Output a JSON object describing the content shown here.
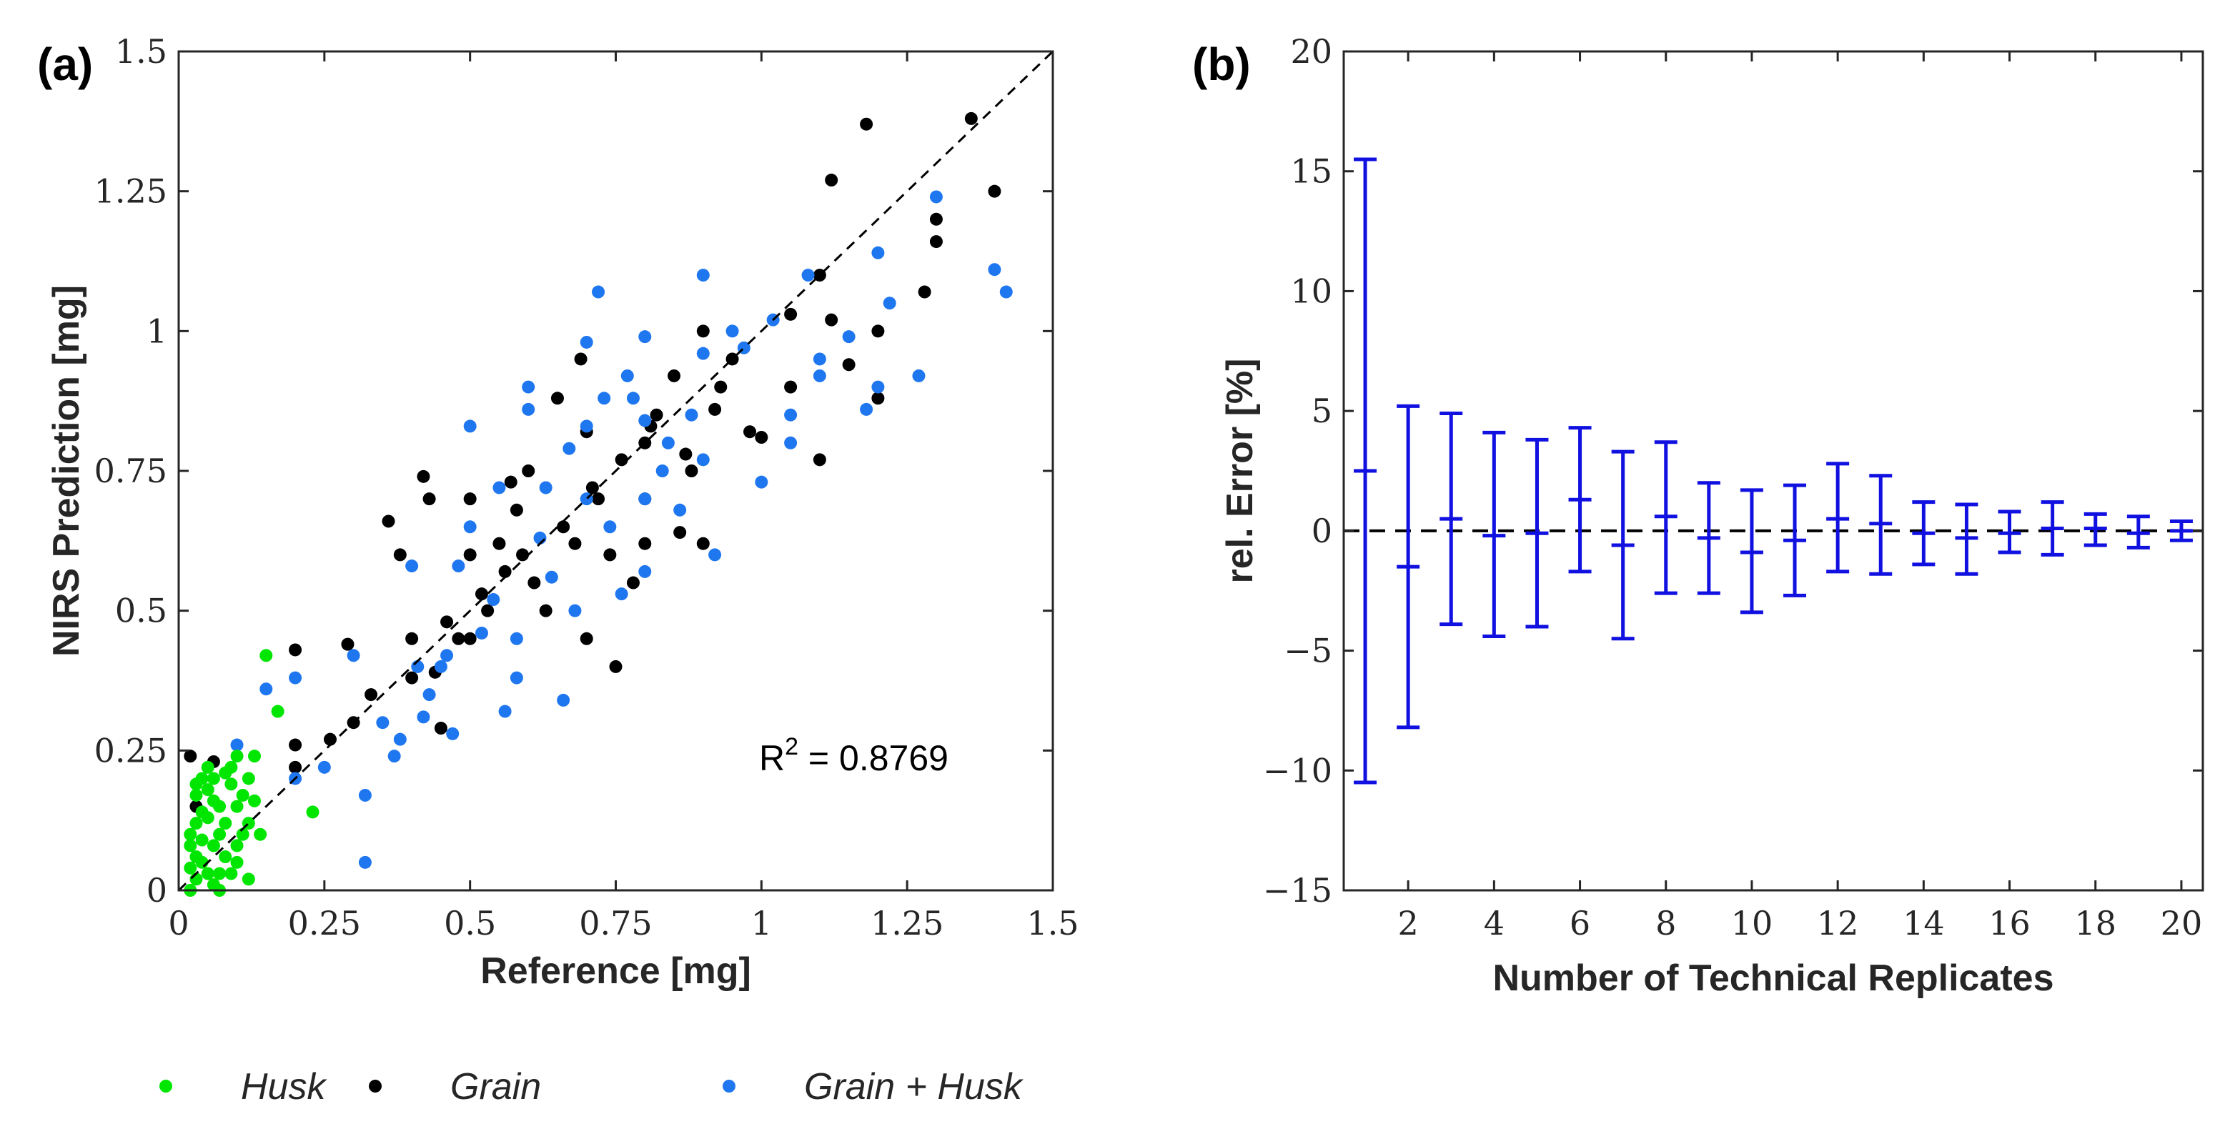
{
  "chart_data": [
    {
      "type": "scatter",
      "panel_label": "(a)",
      "xlabel": "Reference [mg]",
      "ylabel": "NIRS Prediction [mg]",
      "xlim": [
        0,
        1.5
      ],
      "ylim": [
        0,
        1.5
      ],
      "x_ticks": [
        "0",
        "0.25",
        "0.5",
        "0.75",
        "1",
        "1.25",
        "1.5"
      ],
      "y_ticks": [
        "0",
        "0.25",
        "0.5",
        "0.75",
        "1",
        "1.25",
        "1.5"
      ],
      "annotation": {
        "base": "R",
        "sup": "2",
        "rest": " = 0.8769"
      },
      "reference_line": "y = x (dashed)",
      "legend_position": "bottom",
      "series": [
        {
          "name": "Husk",
          "color": "#00e600",
          "points": [
            [
              0.02,
              0.0
            ],
            [
              0.03,
              0.02
            ],
            [
              0.04,
              0.05
            ],
            [
              0.05,
              0.03
            ],
            [
              0.06,
              0.08
            ],
            [
              0.07,
              0.1
            ],
            [
              0.03,
              0.12
            ],
            [
              0.08,
              0.06
            ],
            [
              0.1,
              0.15
            ],
            [
              0.12,
              0.2
            ],
            [
              0.05,
              0.18
            ],
            [
              0.02,
              0.08
            ],
            [
              0.04,
              0.14
            ],
            [
              0.06,
              0.2
            ],
            [
              0.09,
              0.22
            ],
            [
              0.11,
              0.1
            ],
            [
              0.13,
              0.16
            ],
            [
              0.03,
              0.06
            ],
            [
              0.07,
              0.0
            ],
            [
              0.08,
              0.12
            ],
            [
              0.1,
              0.05
            ],
            [
              0.02,
              0.1
            ],
            [
              0.05,
              0.22
            ],
            [
              0.06,
              0.16
            ],
            [
              0.04,
              0.09
            ],
            [
              0.03,
              0.17
            ],
            [
              0.12,
              0.02
            ],
            [
              0.09,
              0.19
            ],
            [
              0.15,
              0.42
            ],
            [
              0.17,
              0.32
            ],
            [
              0.14,
              0.1
            ],
            [
              0.23,
              0.14
            ],
            [
              0.07,
              0.03
            ],
            [
              0.1,
              0.08
            ],
            [
              0.11,
              0.17
            ],
            [
              0.05,
              0.13
            ],
            [
              0.08,
              0.21
            ],
            [
              0.06,
              0.01
            ],
            [
              0.02,
              0.04
            ],
            [
              0.04,
              0.2
            ],
            [
              0.09,
              0.03
            ],
            [
              0.12,
              0.12
            ],
            [
              0.13,
              0.24
            ],
            [
              0.03,
              0.19
            ],
            [
              0.07,
              0.15
            ],
            [
              0.1,
              0.24
            ]
          ]
        },
        {
          "name": "Grain",
          "color": "#000000",
          "points": [
            [
              0.02,
              0.24
            ],
            [
              0.03,
              0.15
            ],
            [
              0.06,
              0.23
            ],
            [
              0.2,
              0.26
            ],
            [
              0.2,
              0.22
            ],
            [
              0.2,
              0.43
            ],
            [
              0.26,
              0.27
            ],
            [
              0.29,
              0.44
            ],
            [
              0.3,
              0.3
            ],
            [
              0.33,
              0.35
            ],
            [
              0.36,
              0.66
            ],
            [
              0.38,
              0.6
            ],
            [
              0.4,
              0.45
            ],
            [
              0.4,
              0.38
            ],
            [
              0.42,
              0.74
            ],
            [
              0.43,
              0.7
            ],
            [
              0.45,
              0.29
            ],
            [
              0.46,
              0.48
            ],
            [
              0.5,
              0.7
            ],
            [
              0.5,
              0.6
            ],
            [
              0.5,
              0.45
            ],
            [
              0.52,
              0.53
            ],
            [
              0.55,
              0.62
            ],
            [
              0.57,
              0.73
            ],
            [
              0.58,
              0.68
            ],
            [
              0.6,
              0.75
            ],
            [
              0.61,
              0.55
            ],
            [
              0.63,
              0.5
            ],
            [
              0.65,
              0.88
            ],
            [
              0.68,
              0.62
            ],
            [
              0.69,
              0.95
            ],
            [
              0.7,
              0.45
            ],
            [
              0.7,
              0.82
            ],
            [
              0.72,
              0.7
            ],
            [
              0.74,
              0.6
            ],
            [
              0.75,
              0.4
            ],
            [
              0.78,
              0.55
            ],
            [
              0.8,
              0.8
            ],
            [
              0.8,
              0.7
            ],
            [
              0.8,
              0.62
            ],
            [
              0.82,
              0.85
            ],
            [
              0.85,
              0.92
            ],
            [
              0.86,
              0.64
            ],
            [
              0.88,
              0.75
            ],
            [
              0.9,
              1.0
            ],
            [
              0.9,
              0.62
            ],
            [
              0.92,
              0.86
            ],
            [
              0.95,
              0.95
            ],
            [
              0.98,
              0.82
            ],
            [
              1.0,
              0.81
            ],
            [
              1.05,
              0.9
            ],
            [
              1.05,
              1.03
            ],
            [
              1.1,
              1.1
            ],
            [
              1.1,
              0.77
            ],
            [
              1.12,
              1.27
            ],
            [
              1.12,
              1.02
            ],
            [
              1.15,
              0.94
            ],
            [
              1.18,
              1.37
            ],
            [
              1.2,
              0.88
            ],
            [
              1.2,
              1.0
            ],
            [
              1.28,
              1.07
            ],
            [
              1.3,
              1.2
            ],
            [
              1.3,
              1.16
            ],
            [
              1.36,
              1.38
            ],
            [
              1.4,
              1.25
            ],
            [
              0.44,
              0.39
            ],
            [
              0.48,
              0.45
            ],
            [
              0.53,
              0.5
            ],
            [
              0.56,
              0.57
            ],
            [
              0.59,
              0.6
            ],
            [
              0.66,
              0.65
            ],
            [
              0.71,
              0.72
            ],
            [
              0.76,
              0.77
            ],
            [
              0.81,
              0.83
            ],
            [
              0.87,
              0.78
            ],
            [
              0.93,
              0.9
            ]
          ]
        },
        {
          "name": "Grain + Husk",
          "color": "#1f77f0",
          "points": [
            [
              0.1,
              0.26
            ],
            [
              0.15,
              0.36
            ],
            [
              0.2,
              0.38
            ],
            [
              0.2,
              0.2
            ],
            [
              0.25,
              0.22
            ],
            [
              0.3,
              0.42
            ],
            [
              0.32,
              0.17
            ],
            [
              0.32,
              0.05
            ],
            [
              0.35,
              0.3
            ],
            [
              0.37,
              0.24
            ],
            [
              0.4,
              0.58
            ],
            [
              0.41,
              0.4
            ],
            [
              0.43,
              0.35
            ],
            [
              0.45,
              0.4
            ],
            [
              0.47,
              0.28
            ],
            [
              0.48,
              0.58
            ],
            [
              0.5,
              0.83
            ],
            [
              0.5,
              0.65
            ],
            [
              0.52,
              0.46
            ],
            [
              0.55,
              0.72
            ],
            [
              0.56,
              0.32
            ],
            [
              0.58,
              0.38
            ],
            [
              0.6,
              0.9
            ],
            [
              0.6,
              0.86
            ],
            [
              0.62,
              0.63
            ],
            [
              0.64,
              0.56
            ],
            [
              0.66,
              0.34
            ],
            [
              0.68,
              0.5
            ],
            [
              0.7,
              0.98
            ],
            [
              0.7,
              0.83
            ],
            [
              0.7,
              0.7
            ],
            [
              0.72,
              1.07
            ],
            [
              0.74,
              0.65
            ],
            [
              0.76,
              0.53
            ],
            [
              0.78,
              0.88
            ],
            [
              0.8,
              0.99
            ],
            [
              0.8,
              0.84
            ],
            [
              0.8,
              0.7
            ],
            [
              0.8,
              0.57
            ],
            [
              0.84,
              0.8
            ],
            [
              0.86,
              0.68
            ],
            [
              0.9,
              1.1
            ],
            [
              0.9,
              0.96
            ],
            [
              0.9,
              0.77
            ],
            [
              0.92,
              0.6
            ],
            [
              0.95,
              1.0
            ],
            [
              1.0,
              0.73
            ],
            [
              1.05,
              0.8
            ],
            [
              1.05,
              0.85
            ],
            [
              1.08,
              1.1
            ],
            [
              1.1,
              0.92
            ],
            [
              1.1,
              0.95
            ],
            [
              1.15,
              0.99
            ],
            [
              1.18,
              0.86
            ],
            [
              1.2,
              1.14
            ],
            [
              1.2,
              0.9
            ],
            [
              1.22,
              1.05
            ],
            [
              1.27,
              0.92
            ],
            [
              1.3,
              1.24
            ],
            [
              1.4,
              1.11
            ],
            [
              1.42,
              1.07
            ],
            [
              0.58,
              0.45
            ],
            [
              0.63,
              0.72
            ],
            [
              0.67,
              0.79
            ],
            [
              0.73,
              0.88
            ],
            [
              0.77,
              0.92
            ],
            [
              0.83,
              0.75
            ],
            [
              0.88,
              0.85
            ],
            [
              0.97,
              0.97
            ],
            [
              1.02,
              1.02
            ],
            [
              0.42,
              0.31
            ],
            [
              0.38,
              0.27
            ],
            [
              0.54,
              0.52
            ],
            [
              0.46,
              0.42
            ]
          ]
        }
      ]
    },
    {
      "type": "errorbar",
      "panel_label": "(b)",
      "xlabel": "Number of Technical Replicates",
      "ylabel": "rel. Error [%]",
      "xlim": [
        0.5,
        20.5
      ],
      "ylim": [
        -15,
        20
      ],
      "x_ticks": [
        "2",
        "4",
        "6",
        "8",
        "10",
        "12",
        "14",
        "16",
        "18",
        "20"
      ],
      "y_ticks": [
        "−15",
        "−10",
        "−5",
        "0",
        "5",
        "10",
        "15",
        "20"
      ],
      "color": "#1010e0",
      "reference_line": "y = 0 (dashed)",
      "x": [
        1,
        2,
        3,
        4,
        5,
        6,
        7,
        8,
        9,
        10,
        11,
        12,
        13,
        14,
        15,
        16,
        17,
        18,
        19,
        20
      ],
      "mean": [
        2.5,
        -1.5,
        0.5,
        -0.2,
        -0.1,
        1.3,
        -0.6,
        0.6,
        -0.3,
        -0.9,
        -0.4,
        0.5,
        0.3,
        -0.1,
        -0.3,
        -0.1,
        0.1,
        0.1,
        -0.1,
        0.0
      ],
      "upper": [
        15.5,
        5.2,
        4.9,
        4.1,
        3.8,
        4.3,
        3.3,
        3.7,
        2.0,
        1.7,
        1.9,
        2.8,
        2.3,
        1.2,
        1.1,
        0.8,
        1.2,
        0.7,
        0.6,
        0.4
      ],
      "lower": [
        -10.5,
        -8.2,
        -3.9,
        -4.4,
        -4.0,
        -1.7,
        -4.5,
        -2.6,
        -2.6,
        -3.4,
        -2.7,
        -1.7,
        -1.8,
        -1.4,
        -1.8,
        -0.9,
        -1.0,
        -0.6,
        -0.7,
        -0.4
      ]
    }
  ]
}
